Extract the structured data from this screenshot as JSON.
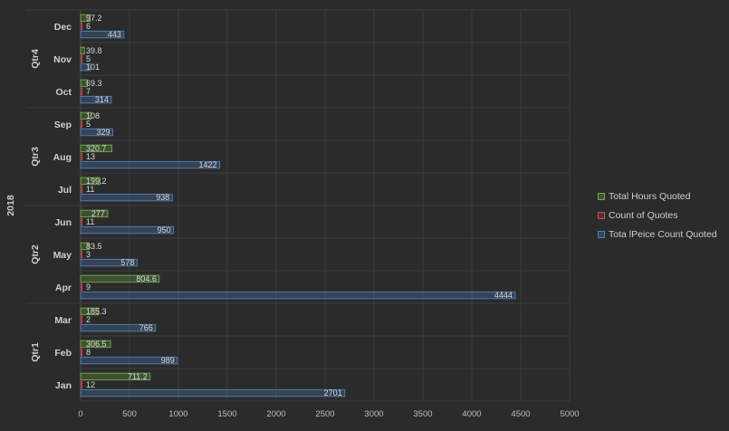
{
  "chart_data": {
    "type": "bar",
    "orientation": "horizontal",
    "year_label": "2018",
    "quarters": [
      {
        "label": "Qtr1",
        "months": [
          "Jan",
          "Feb",
          "Mar"
        ]
      },
      {
        "label": "Qtr2",
        "months": [
          "Apr",
          "May",
          "Jun"
        ]
      },
      {
        "label": "Qtr3",
        "months": [
          "Jul",
          "Aug",
          "Sep"
        ]
      },
      {
        "label": "Qtr4",
        "months": [
          "Oct",
          "Nov",
          "Dec"
        ]
      }
    ],
    "categories": [
      "Jan",
      "Feb",
      "Mar",
      "Apr",
      "May",
      "Jun",
      "Jul",
      "Aug",
      "Sep",
      "Oct",
      "Nov",
      "Dec"
    ],
    "series": [
      {
        "name": "Total Hours Quoted",
        "color": "#70ad47",
        "values": [
          711.2,
          306.5,
          185.3,
          804.6,
          83.5,
          277,
          199.2,
          320.7,
          108,
          69.3,
          39.8,
          97.2
        ],
        "labels": [
          "711.2",
          "306.5",
          "185.3",
          "804.6",
          "83.5",
          "277",
          "199.2",
          "320.7",
          "108",
          "69.3",
          "39.8",
          "97.2"
        ]
      },
      {
        "name": "Count of Quotes",
        "color": "#c0504d",
        "values": [
          12,
          8,
          2,
          9,
          3,
          11,
          11,
          13,
          5,
          7,
          5,
          6
        ],
        "labels": [
          "12",
          "8",
          "2",
          "9",
          "3",
          "11",
          "11",
          "13",
          "5",
          "7",
          "5",
          "6"
        ]
      },
      {
        "name": "Tota lPeice Count Quoted",
        "color": "#4f81bd",
        "values": [
          2701,
          989,
          766,
          4444,
          578,
          950,
          938,
          1422,
          329,
          314,
          101,
          443
        ],
        "labels": [
          "2701",
          "989",
          "766",
          "4444",
          "578",
          "950",
          "938",
          "1422",
          "329",
          "314",
          "101",
          "443"
        ]
      }
    ],
    "xlim": [
      0,
      5000
    ],
    "xticks": [
      0,
      500,
      1000,
      1500,
      2000,
      2500,
      3000,
      3500,
      4000,
      4500,
      5000
    ],
    "grid": true,
    "legend_position": "right",
    "title": "",
    "xlabel": "",
    "ylabel": ""
  }
}
